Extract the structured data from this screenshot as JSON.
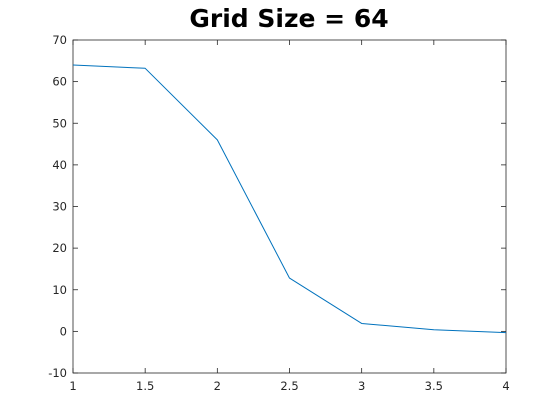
{
  "chart_data": {
    "type": "line",
    "title": "Grid Size = 64",
    "xlabel": "",
    "ylabel": "",
    "xlim": [
      1,
      4
    ],
    "ylim": [
      -10,
      70
    ],
    "x_ticks": [
      "1",
      "1.5",
      "2",
      "2.5",
      "3",
      "3.5",
      "4"
    ],
    "y_ticks": [
      "-10",
      "0",
      "10",
      "20",
      "30",
      "40",
      "50",
      "60",
      "70"
    ],
    "grid": false,
    "series": [
      {
        "x": [
          1,
          1.5,
          2,
          2.5,
          3,
          3.5,
          4
        ],
        "y": [
          64,
          63.2,
          46,
          12.8,
          1.9,
          0.4,
          -0.3
        ]
      }
    ]
  },
  "colors": {
    "line": "#0072BD",
    "axes": "#262626",
    "background": "#ffffff"
  }
}
